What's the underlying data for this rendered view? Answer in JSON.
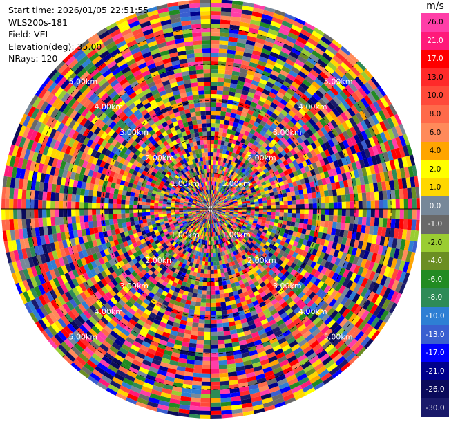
{
  "info": {
    "start_time": "Start time: 2026/01/05 22:51:55",
    "site": "WLS200s-181",
    "field": "Field: VEL",
    "elevation": "Elevation(deg): 35.00",
    "nrays": "NRays: 120"
  },
  "chart_data": {
    "type": "heatmap",
    "projection": "polar",
    "field": "VEL",
    "n_rays": 120,
    "elevation_deg": 35.0,
    "range_rings_km": [
      1.0,
      2.0,
      3.0,
      4.0,
      5.0
    ],
    "ring_labels": [
      "1.00km",
      "2.00km",
      "3.00km",
      "4.00km",
      "5.00km"
    ],
    "colorbar": {
      "unit": "m/s",
      "ticks": [
        "26.0",
        "21.0",
        "17.0",
        "13.0",
        "10.0",
        "8.0",
        "6.0",
        "4.0",
        "2.0",
        "1.0",
        "0.0",
        "-1.0",
        "-2.0",
        "-4.0",
        "-6.0",
        "-8.0",
        "-10.0",
        "-13.0",
        "-17.0",
        "-21.0",
        "-26.0",
        "-30.0"
      ],
      "colors": [
        "#ff3ea8",
        "#ff1a7a",
        "#ff0000",
        "#ff2a2a",
        "#ff4a3a",
        "#ff6a4a",
        "#ff8a5a",
        "#ffa500",
        "#ffff00",
        "#ffd700",
        "#778899",
        "#696969",
        "#9acd32",
        "#6b8e23",
        "#228b22",
        "#2e8b57",
        "#2e7fd4",
        "#3a5fd0",
        "#0000ff",
        "#00008b",
        "#0a0a5a",
        "#1a1a6a"
      ]
    }
  }
}
